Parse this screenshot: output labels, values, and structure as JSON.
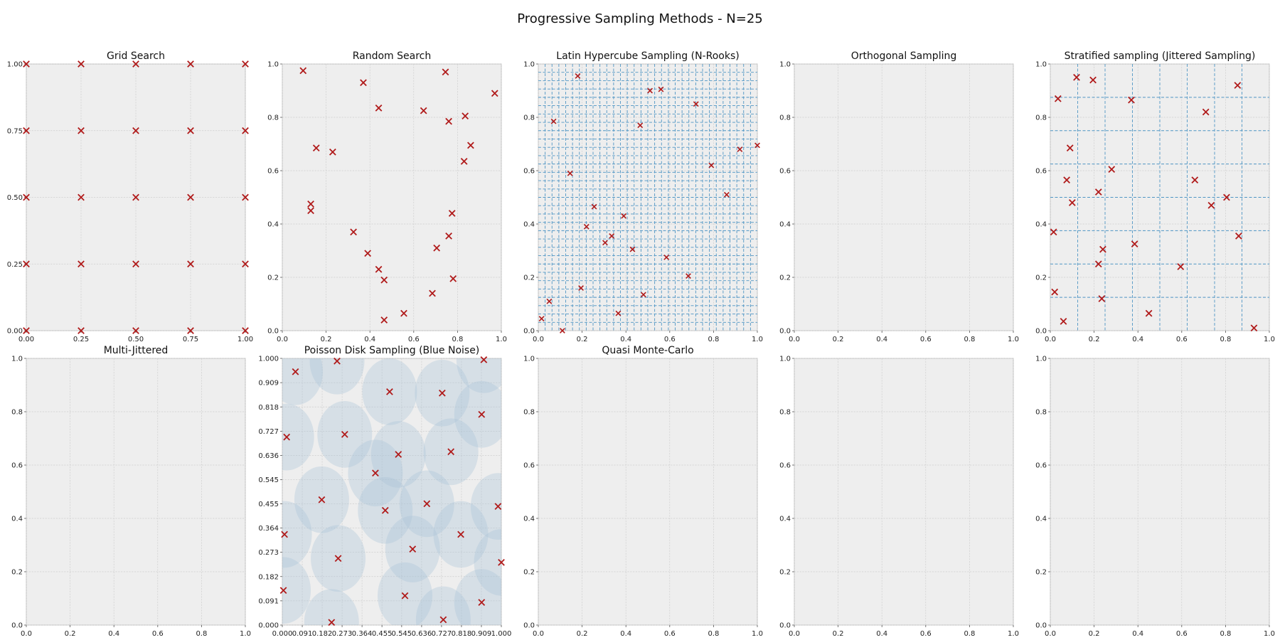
{
  "suptitle": "Progressive Sampling Methods - N=25",
  "colors": {
    "axes_bg": "#eeeeee",
    "grid": "#cfcfcf",
    "marker": "#b01a1a",
    "strata": "#4f95c4",
    "disk": "#a8c2d8"
  },
  "chart_data": [
    {
      "type": "scatter",
      "title": "Grid Search",
      "xlim": [
        0,
        1
      ],
      "ylim": [
        0,
        1
      ],
      "xticks": [
        "0.00",
        "0.25",
        "0.50",
        "0.75",
        "1.00"
      ],
      "yticks": [
        "0.00",
        "0.25",
        "0.50",
        "0.75",
        "1.00"
      ],
      "grid": true,
      "marker": "x",
      "points": [
        [
          0,
          0
        ],
        [
          0.25,
          0
        ],
        [
          0.5,
          0
        ],
        [
          0.75,
          0
        ],
        [
          1,
          0
        ],
        [
          0,
          0.25
        ],
        [
          0.25,
          0.25
        ],
        [
          0.5,
          0.25
        ],
        [
          0.75,
          0.25
        ],
        [
          1,
          0.25
        ],
        [
          0,
          0.5
        ],
        [
          0.25,
          0.5
        ],
        [
          0.5,
          0.5
        ],
        [
          0.75,
          0.5
        ],
        [
          1,
          0.5
        ],
        [
          0,
          0.75
        ],
        [
          0.25,
          0.75
        ],
        [
          0.5,
          0.75
        ],
        [
          0.75,
          0.75
        ],
        [
          1,
          0.75
        ],
        [
          0,
          1
        ],
        [
          0.25,
          1
        ],
        [
          0.5,
          1
        ],
        [
          0.75,
          1
        ],
        [
          1,
          1
        ]
      ]
    },
    {
      "type": "scatter",
      "title": "Random Search",
      "xlim": [
        0,
        1
      ],
      "ylim": [
        0,
        1
      ],
      "xticks": [
        "0.0",
        "0.2",
        "0.4",
        "0.6",
        "0.8",
        "1.0"
      ],
      "yticks": [
        "0.0",
        "0.2",
        "0.4",
        "0.6",
        "0.8",
        "1.0"
      ],
      "grid": true,
      "marker": "x",
      "points": [
        [
          0.095,
          0.975
        ],
        [
          0.37,
          0.93
        ],
        [
          0.745,
          0.97
        ],
        [
          0.97,
          0.89
        ],
        [
          0.44,
          0.835
        ],
        [
          0.645,
          0.825
        ],
        [
          0.835,
          0.805
        ],
        [
          0.76,
          0.785
        ],
        [
          0.155,
          0.685
        ],
        [
          0.23,
          0.67
        ],
        [
          0.86,
          0.695
        ],
        [
          0.83,
          0.635
        ],
        [
          0.13,
          0.475
        ],
        [
          0.13,
          0.45
        ],
        [
          0.775,
          0.44
        ],
        [
          0.325,
          0.37
        ],
        [
          0.76,
          0.355
        ],
        [
          0.705,
          0.31
        ],
        [
          0.39,
          0.29
        ],
        [
          0.44,
          0.23
        ],
        [
          0.465,
          0.19
        ],
        [
          0.78,
          0.195
        ],
        [
          0.685,
          0.14
        ],
        [
          0.555,
          0.065
        ],
        [
          0.465,
          0.04
        ]
      ]
    },
    {
      "type": "scatter",
      "title": "Latin Hypercube Sampling (N-Rooks)",
      "xlim": [
        0,
        1
      ],
      "ylim": [
        0,
        1
      ],
      "xticks": [
        "0.0",
        "0.2",
        "0.4",
        "0.6",
        "0.8",
        "1.0"
      ],
      "yticks": [
        "0.0",
        "0.2",
        "0.4",
        "0.6",
        "0.8",
        "1.0"
      ],
      "grid": true,
      "strata": {
        "x": 32,
        "y": 32
      },
      "marker": "x",
      "points": [
        [
          0.18,
          0.955
        ],
        [
          0.51,
          0.9
        ],
        [
          0.56,
          0.905
        ],
        [
          0.07,
          0.785
        ],
        [
          0.72,
          0.85
        ],
        [
          0.465,
          0.77
        ],
        [
          0.92,
          0.68
        ],
        [
          1.0,
          0.695
        ],
        [
          0.79,
          0.62
        ],
        [
          0.145,
          0.59
        ],
        [
          0.86,
          0.51
        ],
        [
          0.255,
          0.465
        ],
        [
          0.39,
          0.43
        ],
        [
          0.22,
          0.39
        ],
        [
          0.335,
          0.355
        ],
        [
          0.305,
          0.33
        ],
        [
          0.43,
          0.305
        ],
        [
          0.585,
          0.275
        ],
        [
          0.685,
          0.205
        ],
        [
          0.195,
          0.16
        ],
        [
          0.48,
          0.135
        ],
        [
          0.05,
          0.11
        ],
        [
          0.365,
          0.065
        ],
        [
          0.015,
          0.045
        ],
        [
          0.11,
          0.0
        ]
      ]
    },
    {
      "type": "scatter",
      "title": "Orthogonal Sampling",
      "xlim": [
        0,
        1
      ],
      "ylim": [
        0,
        1
      ],
      "xticks": [
        "0.0",
        "0.2",
        "0.4",
        "0.6",
        "0.8",
        "1.0"
      ],
      "yticks": [
        "0.0",
        "0.2",
        "0.4",
        "0.6",
        "0.8",
        "1.0"
      ],
      "grid": true,
      "marker": "x",
      "points": []
    },
    {
      "type": "scatter",
      "title": "Stratified sampling (Jittered Sampling)",
      "xlim": [
        0,
        1
      ],
      "ylim": [
        0,
        1
      ],
      "xticks": [
        "0.0",
        "0.2",
        "0.4",
        "0.6",
        "0.8",
        "1.0"
      ],
      "yticks": [
        "0.0",
        "0.2",
        "0.4",
        "0.6",
        "0.8",
        "1.0"
      ],
      "grid": true,
      "strata": {
        "x": 8,
        "y": 8
      },
      "marker": "x",
      "points": [
        [
          0.12,
          0.95
        ],
        [
          0.195,
          0.94
        ],
        [
          0.035,
          0.87
        ],
        [
          0.37,
          0.865
        ],
        [
          0.855,
          0.92
        ],
        [
          0.71,
          0.82
        ],
        [
          0.09,
          0.685
        ],
        [
          0.28,
          0.605
        ],
        [
          0.075,
          0.565
        ],
        [
          0.66,
          0.565
        ],
        [
          0.1,
          0.48
        ],
        [
          0.22,
          0.52
        ],
        [
          0.805,
          0.5
        ],
        [
          0.735,
          0.47
        ],
        [
          0.015,
          0.37
        ],
        [
          0.86,
          0.355
        ],
        [
          0.385,
          0.325
        ],
        [
          0.24,
          0.305
        ],
        [
          0.22,
          0.25
        ],
        [
          0.595,
          0.24
        ],
        [
          0.235,
          0.12
        ],
        [
          0.02,
          0.145
        ],
        [
          0.06,
          0.035
        ],
        [
          0.45,
          0.065
        ],
        [
          0.93,
          0.01
        ]
      ]
    },
    {
      "type": "scatter",
      "title": "Multi-Jittered",
      "xlim": [
        0,
        1
      ],
      "ylim": [
        0,
        1
      ],
      "xticks": [
        "0.0",
        "0.2",
        "0.4",
        "0.6",
        "0.8",
        "1.0"
      ],
      "yticks": [
        "0.0",
        "0.2",
        "0.4",
        "0.6",
        "0.8",
        "1.0"
      ],
      "grid": true,
      "marker": "x",
      "points": []
    },
    {
      "type": "scatter",
      "title": "Poisson Disk Sampling (Blue Noise)",
      "xlim": [
        0,
        1
      ],
      "ylim": [
        0,
        1
      ],
      "xticks": [
        "0.000",
        "0.091",
        "0.182",
        "0.273",
        "0.364",
        "0.455",
        "0.545",
        "0.636",
        "0.727",
        "0.818",
        "0.909",
        "1.000"
      ],
      "yticks": [
        "0.000",
        "0.091",
        "0.182",
        "0.273",
        "0.364",
        "0.455",
        "0.545",
        "0.636",
        "0.727",
        "0.818",
        "0.909",
        "1.000"
      ],
      "grid": true,
      "disk_radius": 0.125,
      "marker": "x",
      "points": [
        [
          0.06,
          0.95
        ],
        [
          0.25,
          0.99
        ],
        [
          0.92,
          0.995
        ],
        [
          0.49,
          0.875
        ],
        [
          0.73,
          0.87
        ],
        [
          0.91,
          0.79
        ],
        [
          0.02,
          0.705
        ],
        [
          0.285,
          0.715
        ],
        [
          0.53,
          0.64
        ],
        [
          0.77,
          0.65
        ],
        [
          0.425,
          0.57
        ],
        [
          0.18,
          0.47
        ],
        [
          0.47,
          0.43
        ],
        [
          0.66,
          0.455
        ],
        [
          0.985,
          0.445
        ],
        [
          0.01,
          0.34
        ],
        [
          0.815,
          0.34
        ],
        [
          0.595,
          0.285
        ],
        [
          0.255,
          0.25
        ],
        [
          1.0,
          0.235
        ],
        [
          0.005,
          0.13
        ],
        [
          0.56,
          0.11
        ],
        [
          0.91,
          0.085
        ],
        [
          0.225,
          0.01
        ],
        [
          0.735,
          0.02
        ]
      ]
    },
    {
      "type": "scatter",
      "title": "Quasi Monte-Carlo",
      "xlim": [
        0,
        1
      ],
      "ylim": [
        0,
        1
      ],
      "xticks": [
        "0.0",
        "0.2",
        "0.4",
        "0.6",
        "0.8",
        "1.0"
      ],
      "yticks": [
        "0.0",
        "0.2",
        "0.4",
        "0.6",
        "0.8",
        "1.0"
      ],
      "grid": true,
      "marker": "x",
      "points": []
    },
    {
      "type": "scatter",
      "title": "",
      "xlim": [
        0,
        1
      ],
      "ylim": [
        0,
        1
      ],
      "xticks": [
        "0.0",
        "0.2",
        "0.4",
        "0.6",
        "0.8",
        "1.0"
      ],
      "yticks": [
        "0.0",
        "0.2",
        "0.4",
        "0.6",
        "0.8",
        "1.0"
      ],
      "grid": true,
      "marker": "x",
      "points": []
    },
    {
      "type": "scatter",
      "title": "",
      "xlim": [
        0,
        1
      ],
      "ylim": [
        0,
        1
      ],
      "xticks": [
        "0.0",
        "0.2",
        "0.4",
        "0.6",
        "0.8",
        "1.0"
      ],
      "yticks": [
        "0.0",
        "0.2",
        "0.4",
        "0.6",
        "0.8",
        "1.0"
      ],
      "grid": true,
      "marker": "x",
      "points": []
    }
  ]
}
